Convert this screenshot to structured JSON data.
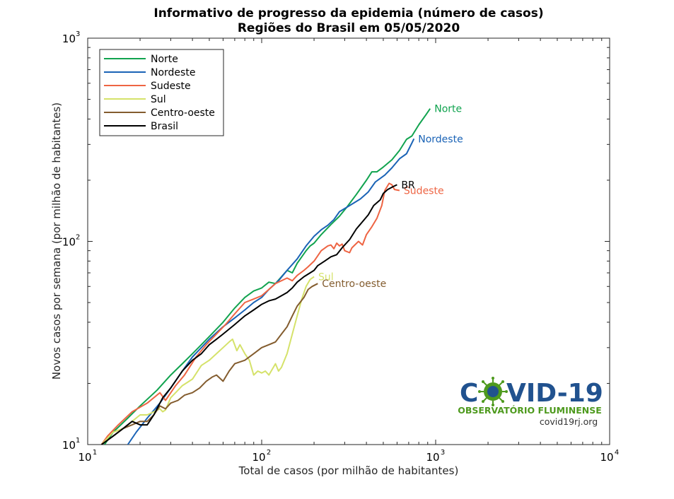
{
  "chart_data": {
    "type": "line",
    "title": "Informativo de progresso da epidemia (número de casos)",
    "subtitle": "Regiões do Brasil em 05/05/2020",
    "xlabel": "Total de casos (por milhão de habitantes)",
    "ylabel": "Novos casos por semana (por milhão de habitantes)",
    "xscale": "log",
    "yscale": "log",
    "xlim": [
      10,
      10000
    ],
    "ylim": [
      10,
      1000
    ],
    "x_ticks": [
      {
        "base": "10",
        "exp": "1",
        "value": 10
      },
      {
        "base": "10",
        "exp": "2",
        "value": 100
      },
      {
        "base": "10",
        "exp": "3",
        "value": 1000
      },
      {
        "base": "10",
        "exp": "4",
        "value": 10000
      }
    ],
    "y_ticks": [
      {
        "base": "10",
        "exp": "1",
        "value": 10
      },
      {
        "base": "10",
        "exp": "2",
        "value": 100
      },
      {
        "base": "10",
        "exp": "3",
        "value": 1000
      }
    ],
    "grid": false,
    "legend_position": "top-left",
    "series": [
      {
        "name": "Norte",
        "end_label": "Norte",
        "color": "#11A34F",
        "points": [
          [
            12.5,
            10
          ],
          [
            14,
            11.5
          ],
          [
            17,
            13.5
          ],
          [
            20,
            15.5
          ],
          [
            25,
            18.5
          ],
          [
            30,
            22
          ],
          [
            35,
            25
          ],
          [
            40,
            28
          ],
          [
            45,
            31
          ],
          [
            50,
            34
          ],
          [
            60,
            40
          ],
          [
            70,
            47
          ],
          [
            80,
            53
          ],
          [
            90,
            57
          ],
          [
            100,
            59
          ],
          [
            110,
            63
          ],
          [
            120,
            62
          ],
          [
            130,
            67
          ],
          [
            140,
            72
          ],
          [
            150,
            70
          ],
          [
            160,
            78
          ],
          [
            170,
            84
          ],
          [
            180,
            90
          ],
          [
            190,
            95
          ],
          [
            200,
            98
          ],
          [
            220,
            108
          ],
          [
            250,
            121
          ],
          [
            280,
            133
          ],
          [
            310,
            148
          ],
          [
            350,
            170
          ],
          [
            400,
            200
          ],
          [
            430,
            220
          ],
          [
            460,
            220
          ],
          [
            500,
            232
          ],
          [
            560,
            252
          ],
          [
            620,
            280
          ],
          [
            680,
            318
          ],
          [
            730,
            330
          ],
          [
            800,
            375
          ],
          [
            880,
            420
          ],
          [
            930,
            450
          ]
        ]
      },
      {
        "name": "Nordeste",
        "end_label": "Nordeste",
        "color": "#1A63B6",
        "points": [
          [
            17,
            10
          ],
          [
            19,
            11.5
          ],
          [
            22,
            13.5
          ],
          [
            26,
            16
          ],
          [
            30,
            19
          ],
          [
            35,
            23
          ],
          [
            40,
            27
          ],
          [
            45,
            30
          ],
          [
            50,
            33
          ],
          [
            60,
            38
          ],
          [
            70,
            42
          ],
          [
            80,
            46
          ],
          [
            90,
            50
          ],
          [
            100,
            53
          ],
          [
            110,
            58
          ],
          [
            125,
            64
          ],
          [
            140,
            72
          ],
          [
            160,
            82
          ],
          [
            180,
            95
          ],
          [
            200,
            106
          ],
          [
            220,
            114
          ],
          [
            240,
            120
          ],
          [
            260,
            128
          ],
          [
            280,
            140
          ],
          [
            320,
            150
          ],
          [
            370,
            162
          ],
          [
            410,
            175
          ],
          [
            450,
            196
          ],
          [
            510,
            212
          ],
          [
            560,
            230
          ],
          [
            620,
            255
          ],
          [
            680,
            270
          ],
          [
            730,
            305
          ],
          [
            750,
            320
          ]
        ]
      },
      {
        "name": "Sudeste",
        "end_label": "Sudeste",
        "color": "#EE6443",
        "points": [
          [
            12,
            10
          ],
          [
            13,
            11
          ],
          [
            15,
            12.5
          ],
          [
            18,
            14.5
          ],
          [
            22,
            16
          ],
          [
            26,
            18
          ],
          [
            28,
            16.5
          ],
          [
            32,
            19.5
          ],
          [
            36,
            22
          ],
          [
            42,
            27
          ],
          [
            48,
            31
          ],
          [
            55,
            35
          ],
          [
            62,
            39
          ],
          [
            70,
            44
          ],
          [
            80,
            50
          ],
          [
            90,
            52
          ],
          [
            100,
            54
          ],
          [
            110,
            58
          ],
          [
            120,
            62
          ],
          [
            140,
            66
          ],
          [
            150,
            64
          ],
          [
            160,
            68
          ],
          [
            175,
            72
          ],
          [
            185,
            75
          ],
          [
            200,
            80
          ],
          [
            220,
            90
          ],
          [
            240,
            95
          ],
          [
            250,
            96
          ],
          [
            260,
            92
          ],
          [
            270,
            98
          ],
          [
            280,
            95
          ],
          [
            290,
            97
          ],
          [
            300,
            90
          ],
          [
            320,
            88
          ],
          [
            330,
            93
          ],
          [
            360,
            100
          ],
          [
            380,
            96
          ],
          [
            400,
            108
          ],
          [
            430,
            118
          ],
          [
            460,
            130
          ],
          [
            490,
            150
          ],
          [
            510,
            178
          ],
          [
            540,
            193
          ],
          [
            560,
            190
          ],
          [
            580,
            180
          ],
          [
            620,
            178
          ]
        ]
      },
      {
        "name": "Sul",
        "end_label": "Sul",
        "color": "#D5E26A",
        "points": [
          [
            12,
            10
          ],
          [
            14,
            11.5
          ],
          [
            16,
            12
          ],
          [
            18,
            13
          ],
          [
            20,
            14
          ],
          [
            22,
            14
          ],
          [
            24,
            14.5
          ],
          [
            26,
            15
          ],
          [
            27,
            14.5
          ],
          [
            28,
            14.8
          ],
          [
            30,
            17
          ],
          [
            32,
            18
          ],
          [
            35,
            19.5
          ],
          [
            40,
            21
          ],
          [
            45,
            24.5
          ],
          [
            50,
            26
          ],
          [
            55,
            28
          ],
          [
            60,
            30
          ],
          [
            65,
            32
          ],
          [
            68,
            33
          ],
          [
            72,
            29
          ],
          [
            75,
            31
          ],
          [
            80,
            28
          ],
          [
            85,
            26
          ],
          [
            90,
            22
          ],
          [
            95,
            23
          ],
          [
            100,
            22.5
          ],
          [
            105,
            23
          ],
          [
            110,
            22
          ],
          [
            120,
            25
          ],
          [
            125,
            23
          ],
          [
            130,
            24
          ],
          [
            140,
            28
          ],
          [
            150,
            35
          ],
          [
            160,
            43
          ],
          [
            170,
            52
          ],
          [
            180,
            60
          ],
          [
            190,
            65
          ],
          [
            200,
            67
          ]
        ]
      },
      {
        "name": "Centro-oeste",
        "end_label": "Centro-oeste",
        "color": "#835C2E",
        "points": [
          [
            12,
            10
          ],
          [
            14,
            11
          ],
          [
            16,
            12
          ],
          [
            18,
            12.5
          ],
          [
            20,
            13
          ],
          [
            22,
            13
          ],
          [
            24,
            14
          ],
          [
            26,
            15.5
          ],
          [
            28,
            15
          ],
          [
            30,
            16
          ],
          [
            33,
            16.5
          ],
          [
            36,
            17.5
          ],
          [
            40,
            18
          ],
          [
            44,
            19
          ],
          [
            48,
            20.5
          ],
          [
            52,
            21.5
          ],
          [
            55,
            22
          ],
          [
            60,
            20.5
          ],
          [
            65,
            23
          ],
          [
            70,
            25
          ],
          [
            80,
            26
          ],
          [
            90,
            28
          ],
          [
            100,
            30
          ],
          [
            110,
            31
          ],
          [
            120,
            32
          ],
          [
            130,
            35
          ],
          [
            140,
            38
          ],
          [
            150,
            43
          ],
          [
            160,
            48
          ],
          [
            175,
            53
          ],
          [
            185,
            58
          ],
          [
            195,
            60
          ],
          [
            210,
            62
          ]
        ]
      },
      {
        "name": "Brasil",
        "end_label": "BR",
        "color": "#000000",
        "points": [
          [
            12,
            10
          ],
          [
            14,
            11
          ],
          [
            16,
            12
          ],
          [
            18,
            13
          ],
          [
            20,
            12.5
          ],
          [
            22,
            12.5
          ],
          [
            24,
            14
          ],
          [
            27,
            17
          ],
          [
            30,
            19
          ],
          [
            35,
            23
          ],
          [
            40,
            26
          ],
          [
            45,
            28
          ],
          [
            50,
            31
          ],
          [
            55,
            33
          ],
          [
            60,
            35
          ],
          [
            70,
            39
          ],
          [
            80,
            43
          ],
          [
            90,
            46
          ],
          [
            100,
            49
          ],
          [
            110,
            51
          ],
          [
            120,
            52
          ],
          [
            130,
            54
          ],
          [
            140,
            56
          ],
          [
            150,
            59
          ],
          [
            160,
            63
          ],
          [
            175,
            67
          ],
          [
            190,
            70
          ],
          [
            200,
            72
          ],
          [
            210,
            76
          ],
          [
            230,
            80
          ],
          [
            250,
            84
          ],
          [
            270,
            86
          ],
          [
            290,
            93
          ],
          [
            320,
            102
          ],
          [
            350,
            115
          ],
          [
            380,
            125
          ],
          [
            410,
            135
          ],
          [
            440,
            150
          ],
          [
            460,
            155
          ],
          [
            480,
            160
          ],
          [
            500,
            172
          ],
          [
            530,
            180
          ],
          [
            570,
            186
          ],
          [
            600,
            190
          ]
        ]
      }
    ]
  },
  "logo": {
    "word_left": "C",
    "word_right": "VID-19",
    "subtitle": "OBSERVATÓRIO FLUMINENSE",
    "url": "covid19rj.org",
    "colors": {
      "blue": "#21528F",
      "green": "#4E9A1E"
    }
  }
}
